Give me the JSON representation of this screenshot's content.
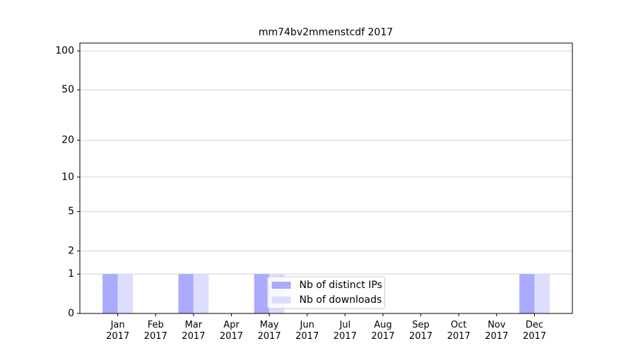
{
  "chart_data": {
    "type": "bar",
    "title": "mm74bv2mmenstcdf 2017",
    "categories": [
      "Jan\n2017",
      "Feb\n2017",
      "Mar\n2017",
      "Apr\n2017",
      "May\n2017",
      "Jun\n2017",
      "Jul\n2017",
      "Aug\n2017",
      "Sep\n2017",
      "Oct\n2017",
      "Nov\n2017",
      "Dec\n2017"
    ],
    "series": [
      {
        "name": "Nb of distinct IPs",
        "color": "#aaaaff",
        "values": [
          1,
          0,
          1,
          0,
          1,
          0,
          0,
          0,
          0,
          0,
          0,
          1
        ]
      },
      {
        "name": "Nb of downloads",
        "color": "#ddddff",
        "values": [
          1,
          0,
          1,
          0,
          1,
          0,
          0,
          0,
          0,
          0,
          0,
          1
        ]
      }
    ],
    "yscale": "log1p",
    "ylim": [
      0,
      115
    ],
    "yticks": [
      0,
      1,
      2,
      5,
      10,
      20,
      50,
      100
    ],
    "grid": true,
    "legend": "lower center"
  }
}
